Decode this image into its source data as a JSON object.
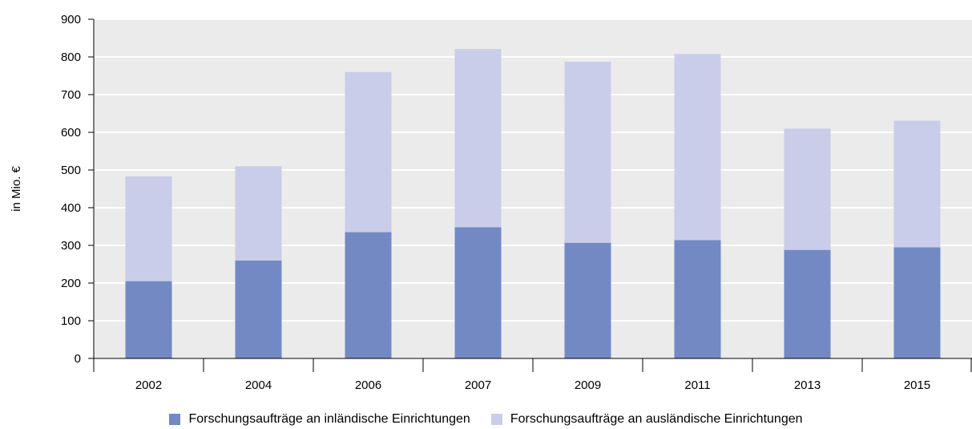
{
  "chart_data": {
    "type": "bar",
    "stacked": true,
    "categories": [
      "2002",
      "2004",
      "2006",
      "2007",
      "2009",
      "2011",
      "2013",
      "2015"
    ],
    "series": [
      {
        "name": "Forschungsaufträge an inländische Einrichtungen",
        "values": [
          205,
          260,
          335,
          348,
          307,
          314,
          288,
          295
        ],
        "color": "#7289c4"
      },
      {
        "name": "Forschungsaufträge an ausländische Einrichtungen",
        "values": [
          278,
          250,
          425,
          473,
          480,
          494,
          322,
          336
        ],
        "color": "#c9cde9"
      }
    ],
    "title": "",
    "xlabel": "",
    "ylabel": "in Mio. €",
    "ylim": [
      0,
      900
    ],
    "yticks": [
      "0",
      "100",
      "200",
      "300",
      "400",
      "500",
      "600",
      "700",
      "800",
      "900"
    ],
    "grid": true,
    "plot_background": "#ebebeb",
    "legend_position": "bottom"
  }
}
